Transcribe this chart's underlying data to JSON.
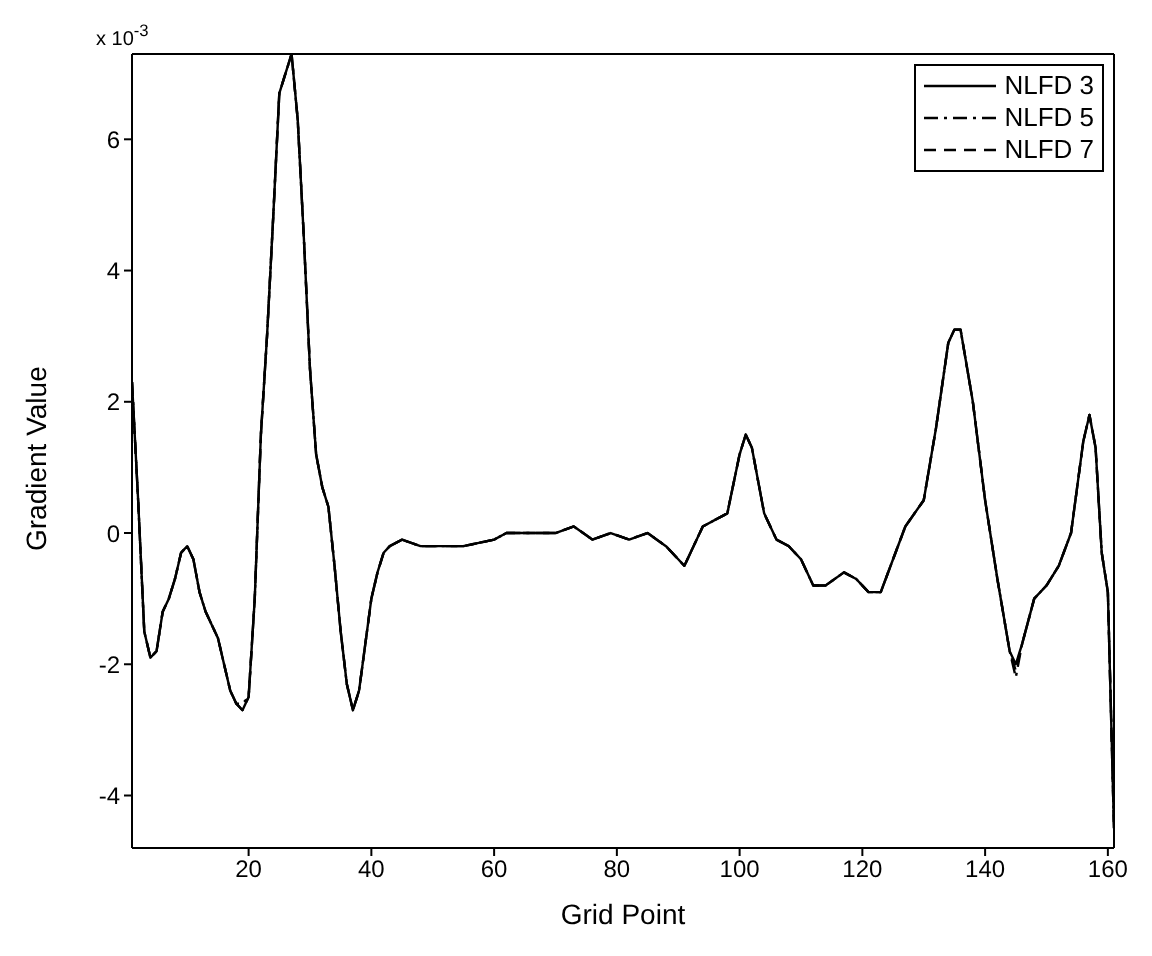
{
  "chart_data": {
    "type": "line",
    "xlabel": "Grid Point",
    "ylabel": "Gradient Value",
    "annotations": [
      "x 10$^{-3}$"
    ],
    "x": [
      1,
      2,
      3,
      4,
      5,
      6,
      7,
      8,
      9,
      10,
      11,
      12,
      13,
      14,
      15,
      16,
      17,
      18,
      19,
      20,
      21,
      22,
      23,
      24,
      25,
      26,
      27,
      28,
      29,
      30,
      31,
      32,
      33,
      34,
      35,
      36,
      37,
      38,
      39,
      40,
      41,
      42,
      43,
      45,
      48,
      50,
      55,
      60,
      62,
      66,
      70,
      73,
      76,
      79,
      82,
      85,
      88,
      90,
      91,
      92,
      94,
      96,
      98,
      100,
      101,
      102,
      104,
      106,
      108,
      110,
      112,
      114,
      117,
      119,
      121,
      123,
      125,
      127,
      130,
      132,
      134,
      135,
      136,
      138,
      140,
      142,
      144,
      145,
      146,
      148,
      150,
      152,
      154,
      156,
      157,
      158,
      159,
      160,
      161
    ],
    "series": [
      {
        "name": "NLFD 3",
        "color": "#000000",
        "line_style": "solid",
        "values": [
          2.3,
          0.5,
          -1.5,
          -1.9,
          -1.8,
          -1.2,
          -1.0,
          -0.7,
          -0.3,
          -0.2,
          -0.4,
          -0.9,
          -1.2,
          -1.4,
          -1.6,
          -2.0,
          -2.4,
          -2.6,
          -2.7,
          -2.5,
          -1.0,
          1.5,
          3.0,
          4.8,
          6.7,
          7.0,
          7.3,
          6.3,
          4.5,
          2.5,
          1.2,
          0.7,
          0.4,
          -0.5,
          -1.5,
          -2.3,
          -2.7,
          -2.4,
          -1.7,
          -1.0,
          -0.6,
          -0.3,
          -0.2,
          -0.1,
          -0.2,
          -0.2,
          -0.2,
          -0.1,
          0,
          0,
          0,
          0.1,
          -0.1,
          0,
          -0.1,
          0,
          -0.2,
          -0.4,
          -0.5,
          -0.3,
          0.1,
          0.2,
          0.3,
          1.2,
          1.5,
          1.3,
          0.3,
          -0.1,
          -0.2,
          -0.4,
          -0.8,
          -0.8,
          -0.6,
          -0.7,
          -0.9,
          -0.9,
          -0.4,
          0.1,
          0.5,
          1.6,
          2.9,
          3.1,
          3.1,
          2.0,
          0.5,
          -0.7,
          -1.8,
          -2.0,
          -1.7,
          -1.0,
          -0.8,
          -0.5,
          0,
          1.4,
          1.8,
          1.3,
          -0.3,
          -0.9,
          -4.5
        ]
      },
      {
        "name": "NLFD 5",
        "color": "#000000",
        "line_style": "dashdot",
        "values": [
          2.3,
          0.5,
          -1.5,
          -1.9,
          -1.8,
          -1.2,
          -1.0,
          -0.7,
          -0.3,
          -0.2,
          -0.4,
          -0.9,
          -1.2,
          -1.4,
          -1.6,
          -2.0,
          -2.4,
          -2.6,
          -2.6,
          -2.5,
          -1.0,
          1.5,
          3.0,
          4.8,
          6.7,
          7.0,
          7.3,
          6.3,
          4.5,
          2.5,
          1.2,
          0.7,
          0.4,
          -0.5,
          -1.5,
          -2.3,
          -2.7,
          -2.4,
          -1.7,
          -1.0,
          -0.6,
          -0.3,
          -0.2,
          -0.1,
          -0.2,
          -0.2,
          -0.2,
          -0.1,
          0,
          0,
          0,
          0.1,
          -0.1,
          0,
          -0.1,
          0,
          -0.2,
          -0.4,
          -0.5,
          -0.3,
          0.1,
          0.2,
          0.3,
          1.2,
          1.5,
          1.3,
          0.3,
          -0.1,
          -0.2,
          -0.4,
          -0.8,
          -0.8,
          -0.6,
          -0.7,
          -0.9,
          -0.9,
          -0.4,
          0.1,
          0.5,
          1.6,
          2.9,
          3.1,
          3.1,
          2.0,
          0.5,
          -0.7,
          -1.8,
          -2.2,
          -1.7,
          -1.0,
          -0.8,
          -0.5,
          0,
          1.4,
          1.8,
          1.3,
          -0.3,
          -0.9,
          -4.5
        ]
      },
      {
        "name": "NLFD 7",
        "color": "#000000",
        "line_style": "dashed",
        "values": [
          2.3,
          0.5,
          -1.5,
          -1.9,
          -1.8,
          -1.2,
          -1.0,
          -0.7,
          -0.3,
          -0.2,
          -0.4,
          -0.9,
          -1.2,
          -1.4,
          -1.6,
          -2.0,
          -2.4,
          -2.6,
          -2.7,
          -2.5,
          -1.0,
          1.5,
          3.0,
          4.8,
          6.7,
          7.0,
          7.3,
          6.3,
          4.5,
          2.5,
          1.2,
          0.7,
          0.4,
          -0.5,
          -1.5,
          -2.3,
          -2.7,
          -2.4,
          -1.7,
          -1.0,
          -0.6,
          -0.3,
          -0.2,
          -0.1,
          -0.2,
          -0.2,
          -0.2,
          -0.1,
          0,
          0,
          0,
          0.1,
          -0.1,
          0,
          -0.1,
          0,
          -0.2,
          -0.4,
          -0.5,
          -0.3,
          0.1,
          0.2,
          0.3,
          1.2,
          1.5,
          1.3,
          0.3,
          -0.1,
          -0.2,
          -0.4,
          -0.8,
          -0.8,
          -0.6,
          -0.7,
          -0.9,
          -0.9,
          -0.4,
          0.1,
          0.5,
          1.6,
          2.9,
          3.1,
          3.1,
          2.0,
          0.5,
          -0.7,
          -1.8,
          -2.1,
          -1.7,
          -1.0,
          -0.8,
          -0.5,
          0,
          1.4,
          1.8,
          1.3,
          -0.3,
          -0.9,
          -4.5
        ]
      }
    ],
    "xlim": [
      1,
      161
    ],
    "xticks": [
      20,
      40,
      60,
      80,
      100,
      120,
      140,
      160
    ],
    "ylim": [
      -4.8,
      7.3
    ],
    "yticks": [
      -4,
      -2,
      0,
      2,
      4,
      6
    ],
    "grid": false,
    "legend": "top right",
    "marker": "none"
  }
}
